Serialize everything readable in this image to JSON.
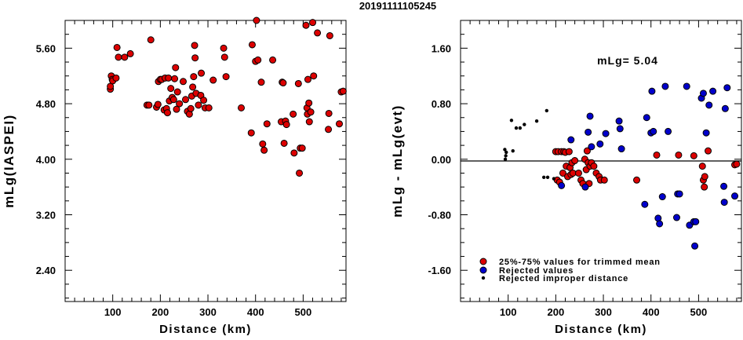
{
  "title": "20191111105245",
  "chart_data": [
    {
      "type": "scatter",
      "xlabel": "Distance (km)",
      "ylabel": "mLg(IASPEI)",
      "xlim": [
        0,
        590
      ],
      "ylim": [
        1.95,
        6.0
      ],
      "x_ticks": [
        100,
        200,
        300,
        400,
        500
      ],
      "y_ticks": [
        2.4,
        3.2,
        4.0,
        4.8,
        5.6
      ],
      "series": [
        {
          "color": "#dd0000",
          "points": [
            [
              95,
              5.01
            ],
            [
              95,
              5.05
            ],
            [
              97,
              5.2
            ],
            [
              99,
              5.15
            ],
            [
              100,
              5.13
            ],
            [
              107,
              5.17
            ],
            [
              109,
              5.61
            ],
            [
              112,
              5.47
            ],
            [
              125,
              5.47
            ],
            [
              137,
              5.52
            ],
            [
              172,
              4.78
            ],
            [
              176,
              4.78
            ],
            [
              180,
              5.72
            ],
            [
              192,
              4.75
            ],
            [
              195,
              4.79
            ],
            [
              196,
              5.12
            ],
            [
              200,
              5.15
            ],
            [
              203,
              5.15
            ],
            [
              208,
              4.71
            ],
            [
              210,
              5.17
            ],
            [
              213,
              4.73
            ],
            [
              215,
              4.67
            ],
            [
              217,
              5.17
            ],
            [
              219,
              4.84
            ],
            [
              222,
              5.02
            ],
            [
              225,
              4.89
            ],
            [
              228,
              4.86
            ],
            [
              230,
              5.16
            ],
            [
              232,
              5.32
            ],
            [
              234,
              4.72
            ],
            [
              236,
              4.97
            ],
            [
              240,
              4.8
            ],
            [
              248,
              5.12
            ],
            [
              253,
              4.86
            ],
            [
              257,
              4.69
            ],
            [
              261,
              4.65
            ],
            [
              264,
              4.73
            ],
            [
              266,
              4.91
            ],
            [
              268,
              5.04
            ],
            [
              270,
              5.19
            ],
            [
              272,
              5.64
            ],
            [
              273,
              5.46
            ],
            [
              275,
              4.95
            ],
            [
              280,
              4.78
            ],
            [
              285,
              4.92
            ],
            [
              286,
              5.24
            ],
            [
              291,
              4.85
            ],
            [
              294,
              4.74
            ],
            [
              302,
              4.74
            ],
            [
              311,
              5.14
            ],
            [
              333,
              5.6
            ],
            [
              335,
              5.47
            ],
            [
              338,
              5.19
            ],
            [
              370,
              4.74
            ],
            [
              391,
              4.38
            ],
            [
              393,
              5.65
            ],
            [
              400,
              5.41
            ],
            [
              402,
              6.0
            ],
            [
              405,
              5.43
            ],
            [
              412,
              5.11
            ],
            [
              415,
              4.22
            ],
            [
              418,
              4.13
            ],
            [
              424,
              4.51
            ],
            [
              436,
              5.43
            ],
            [
              454,
              4.54
            ],
            [
              456,
              5.11
            ],
            [
              458,
              5.1
            ],
            [
              460,
              4.23
            ],
            [
              463,
              4.55
            ],
            [
              465,
              4.5
            ],
            [
              479,
              4.65
            ],
            [
              481,
              4.09
            ],
            [
              490,
              5.09
            ],
            [
              492,
              3.8
            ],
            [
              494,
              4.16
            ],
            [
              498,
              4.16
            ],
            [
              506,
              5.93
            ],
            [
              508,
              4.74
            ],
            [
              509,
              4.65
            ],
            [
              510,
              5.15
            ],
            [
              512,
              4.81
            ],
            [
              513,
              4.54
            ],
            [
              516,
              4.68
            ],
            [
              520,
              5.97
            ],
            [
              522,
              5.2
            ],
            [
              530,
              5.82
            ],
            [
              553,
              4.43
            ],
            [
              554,
              4.66
            ],
            [
              556,
              5.78
            ],
            [
              576,
              4.51
            ],
            [
              580,
              4.97
            ],
            [
              584,
              4.98
            ]
          ]
        }
      ]
    },
    {
      "type": "scatter",
      "xlabel": "Distance (km)",
      "ylabel": "mLg - mLg(evt)",
      "xlim": [
        0,
        590
      ],
      "ylim": [
        -2.05,
        2.0
      ],
      "x_ticks": [
        100,
        200,
        300,
        400,
        500
      ],
      "y_ticks": [
        -1.6,
        -0.8,
        0.0,
        0.8,
        1.6
      ],
      "annotation": "mLg= 5.04",
      "legend": [
        "25%-75% values for trimmed mean",
        "Rejected values",
        "Rejected improper distance"
      ],
      "series": [
        {
          "name": "25%-75% values for trimmed mean",
          "color": "#dd0000",
          "points": [
            [
              200,
              0.11
            ],
            [
              203,
              -0.3
            ],
            [
              205,
              0.11
            ],
            [
              208,
              -0.33
            ],
            [
              212,
              0.11
            ],
            [
              215,
              -0.2
            ],
            [
              217,
              0.11
            ],
            [
              220,
              0.1
            ],
            [
              222,
              -0.1
            ],
            [
              225,
              -0.25
            ],
            [
              228,
              0.11
            ],
            [
              230,
              -0.12
            ],
            [
              232,
              -0.22
            ],
            [
              234,
              -0.05
            ],
            [
              236,
              -0.2
            ],
            [
              240,
              -0.02
            ],
            [
              248,
              -0.2
            ],
            [
              253,
              -0.3
            ],
            [
              257,
              -0.35
            ],
            [
              261,
              0.0
            ],
            [
              264,
              -0.15
            ],
            [
              266,
              0.12
            ],
            [
              268,
              -0.05
            ],
            [
              270,
              -0.35
            ],
            [
              272,
              -0.1
            ],
            [
              275,
              -0.05
            ],
            [
              280,
              -0.1
            ],
            [
              285,
              -0.2
            ],
            [
              291,
              -0.25
            ],
            [
              294,
              -0.3
            ],
            [
              302,
              -0.3
            ],
            [
              370,
              -0.3
            ],
            [
              412,
              0.06
            ],
            [
              458,
              0.06
            ],
            [
              490,
              0.05
            ],
            [
              508,
              -0.1
            ],
            [
              510,
              -0.3
            ],
            [
              512,
              -0.4
            ],
            [
              513,
              -0.25
            ],
            [
              520,
              0.12
            ],
            [
              576,
              -0.08
            ],
            [
              580,
              -0.07
            ]
          ]
        },
        {
          "name": "Rejected values",
          "color": "#0000cc",
          "points": [
            [
              212,
              -0.38
            ],
            [
              232,
              0.28
            ],
            [
              262,
              -0.4
            ],
            [
              268,
              0.39
            ],
            [
              272,
              0.62
            ],
            [
              275,
              0.18
            ],
            [
              293,
              0.22
            ],
            [
              305,
              0.37
            ],
            [
              333,
              0.55
            ],
            [
              335,
              0.44
            ],
            [
              338,
              0.15
            ],
            [
              387,
              -0.65
            ],
            [
              391,
              0.6
            ],
            [
              400,
              0.38
            ],
            [
              402,
              0.98
            ],
            [
              405,
              0.4
            ],
            [
              415,
              -0.85
            ],
            [
              418,
              -0.93
            ],
            [
              424,
              -0.54
            ],
            [
              430,
              1.05
            ],
            [
              436,
              0.4
            ],
            [
              454,
              -0.84
            ],
            [
              456,
              -0.5
            ],
            [
              460,
              -0.5
            ],
            [
              475,
              1.05
            ],
            [
              481,
              -0.95
            ],
            [
              490,
              -0.9
            ],
            [
              492,
              -1.25
            ],
            [
              494,
              -0.9
            ],
            [
              506,
              0.88
            ],
            [
              510,
              0.95
            ],
            [
              516,
              0.38
            ],
            [
              522,
              0.78
            ],
            [
              530,
              0.98
            ],
            [
              553,
              -0.39
            ],
            [
              554,
              -0.62
            ],
            [
              556,
              0.73
            ],
            [
              560,
              1.03
            ],
            [
              576,
              -0.53
            ]
          ]
        },
        {
          "name": "Rejected improper distance",
          "color": "#000000",
          "points": [
            [
              93,
              0.14
            ],
            [
              94,
              0.0
            ],
            [
              95,
              0.05
            ],
            [
              96,
              0.1
            ],
            [
              107,
              0.56
            ],
            [
              110,
              0.12
            ],
            [
              117,
              0.45
            ],
            [
              125,
              0.45
            ],
            [
              134,
              0.5
            ],
            [
              160,
              0.55
            ],
            [
              175,
              -0.26
            ],
            [
              181,
              0.7
            ],
            [
              183,
              -0.26
            ],
            [
              196,
              -0.28
            ]
          ]
        }
      ]
    }
  ]
}
